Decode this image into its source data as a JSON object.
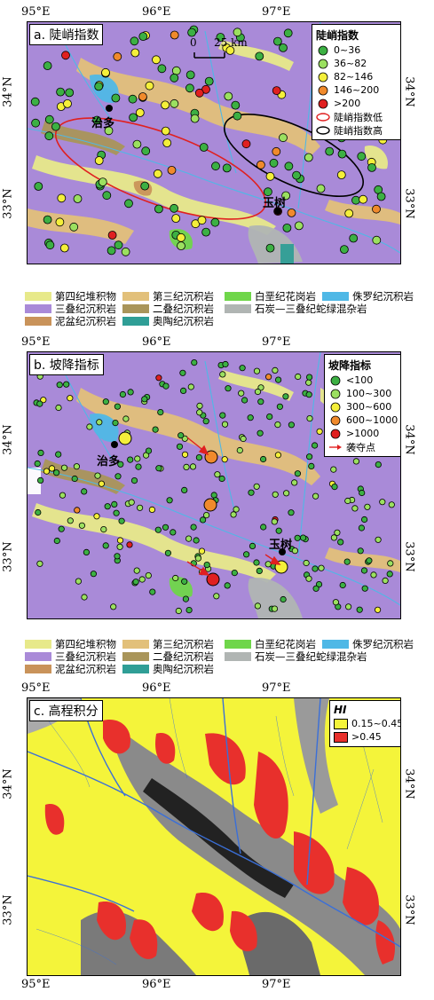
{
  "axes": {
    "lon_labels": [
      "95°E",
      "96°E",
      "97°E"
    ],
    "lat_labels": [
      "34°N",
      "33°N"
    ]
  },
  "places": [
    "治多",
    "玉树"
  ],
  "scale": {
    "zero": "0",
    "label": "25 km"
  },
  "panel_a": {
    "title": "a. 陡峭指数",
    "legend_title": "陡峭指数",
    "classes": [
      {
        "label": "0~36",
        "color": "#3cb043"
      },
      {
        "label": "36~82",
        "color": "#9be060"
      },
      {
        "label": "82~146",
        "color": "#f4ef3a"
      },
      {
        "label": "146~200",
        "color": "#f08a2c"
      },
      {
        "label": ">200",
        "color": "#e02020"
      }
    ],
    "zones": [
      {
        "label": "陡峭指数低",
        "color": "#e02020"
      },
      {
        "label": "陡峭指数高",
        "color": "#000000"
      }
    ]
  },
  "panel_b": {
    "title": "b. 坡降指标",
    "legend_title": "坡降指标",
    "classes": [
      {
        "label": "<100",
        "color": "#3cb043"
      },
      {
        "label": "100~300",
        "color": "#9be060"
      },
      {
        "label": "300~600",
        "color": "#f4ef3a"
      },
      {
        "label": "600~1000",
        "color": "#f08a2c"
      },
      {
        "label": ">1000",
        "color": "#e02020"
      }
    ],
    "capture_label": "袭夺点"
  },
  "panel_c": {
    "title": "c. 高程积分",
    "legend_title": "HI",
    "classes": [
      {
        "label": "0.15~0.45",
        "color": "#f4f43a"
      },
      {
        "label": ">0.45",
        "color": "#e8302c"
      }
    ]
  },
  "lithology": [
    {
      "label": "第四纪堆积物",
      "color": "#e7e98a"
    },
    {
      "label": "第三纪沉积岩",
      "color": "#e2c07a"
    },
    {
      "label": "白垩纪花岗岩",
      "color": "#6fd64a"
    },
    {
      "label": "侏罗纪沉积岩",
      "color": "#4fb8e6"
    },
    {
      "label": "三叠纪沉积岩",
      "color": "#a98ad8"
    },
    {
      "label": "二叠纪沉积岩",
      "color": "#a9955a"
    },
    {
      "label": "石炭—三叠纪蛇绿混杂岩",
      "color": "#b0b5b3"
    },
    {
      "label": "泥盆纪沉积岩",
      "color": "#c9935a"
    },
    {
      "label": "奥陶纪沉积岩",
      "color": "#2f9e96"
    }
  ]
}
